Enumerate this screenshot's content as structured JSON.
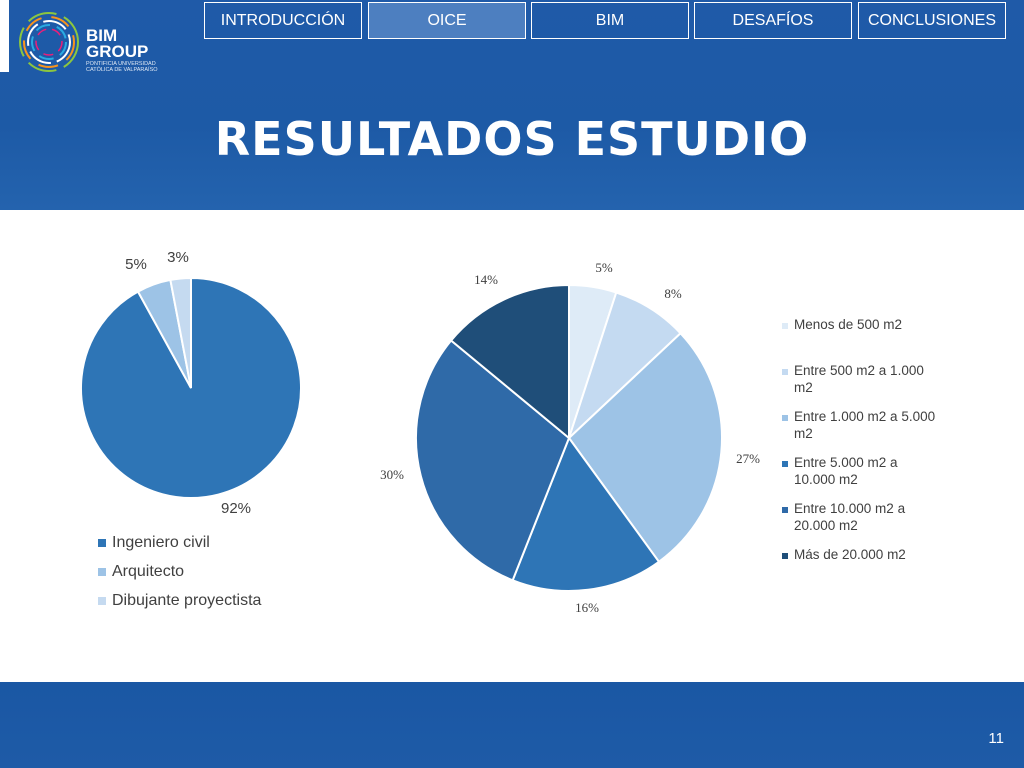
{
  "nav": {
    "tabs": [
      {
        "label": "INTRODUCCIÓN",
        "active": false
      },
      {
        "label": "OICE",
        "active": true
      },
      {
        "label": "BIM",
        "active": false
      },
      {
        "label": "DESAFÍOS",
        "active": false
      },
      {
        "label": "CONCLUSIONES",
        "active": false
      }
    ]
  },
  "logo": {
    "name_line1": "BIM",
    "name_line2": "GROUP",
    "subtitle_line1": "PONTIFICIA UNIVERSIDAD",
    "subtitle_line2": "CATÓLICA DE VALPARAÍSO"
  },
  "title": "RESULTADOS ESTUDIO",
  "page_number": "11",
  "colors": {
    "header_blue": "#1f5aa8",
    "active_tab": "#4d7fc0"
  },
  "chart_data": [
    {
      "type": "pie",
      "title": "",
      "categories": [
        "Ingeniero civil",
        "Arquitecto",
        "Dibujante proyectista"
      ],
      "values": [
        92,
        5,
        3
      ],
      "labels": [
        "92%",
        "5%",
        "3%"
      ],
      "colors": [
        "#2e75b6",
        "#9dc3e6",
        "#c5daf0"
      ],
      "legend": "bottom"
    },
    {
      "type": "pie",
      "title": "",
      "categories": [
        "Menos de 500 m2",
        "Entre 500 m2 a 1.000 m2",
        "Entre 1.000 m2 a 5.000 m2",
        "Entre 5.000 m2 a 10.000 m2",
        "Entre 10.000 m2 a 20.000 m2",
        "Más de 20.000 m2"
      ],
      "values": [
        5,
        8,
        27,
        16,
        30,
        14
      ],
      "labels": [
        "5%",
        "8%",
        "27%",
        "16%",
        "30%",
        "14%"
      ],
      "colors": [
        "#deebf7",
        "#c4daf1",
        "#9dc3e6",
        "#2e75b6",
        "#2f6aa8",
        "#1f4e79"
      ],
      "legend": "right"
    }
  ]
}
